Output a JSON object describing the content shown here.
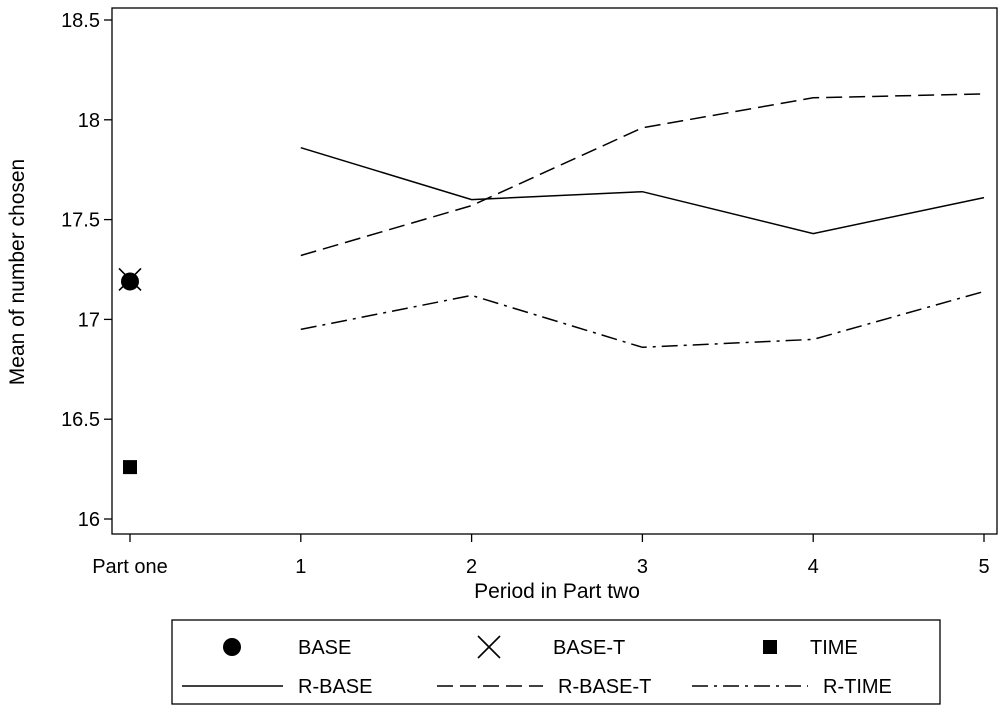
{
  "chart_data": {
    "type": "line",
    "xlabel": "Period in Part two",
    "ylabel": "Mean of number chosen",
    "ylim": [
      15.95,
      18.55
    ],
    "yticks": [
      16,
      16.5,
      17,
      17.5,
      18,
      18.5
    ],
    "ytick_labels": [
      "16",
      "16.5",
      "17",
      "17.5",
      "18",
      "18.5"
    ],
    "xticks": [
      0,
      1,
      2,
      3,
      4,
      5
    ],
    "xtick_labels": [
      "Part one",
      "1",
      "2",
      "3",
      "4",
      "5"
    ],
    "grid": false,
    "legend_position": "bottom",
    "part_one_points": [
      {
        "name": "BASE",
        "marker": "circle",
        "x": 0,
        "y": 17.19
      },
      {
        "name": "BASE-T",
        "marker": "x",
        "x": 0,
        "y": 17.2
      },
      {
        "name": "TIME",
        "marker": "square",
        "x": 0,
        "y": 16.26
      }
    ],
    "series": [
      {
        "name": "R-BASE",
        "dash": "solid",
        "x": [
          1,
          2,
          3,
          4,
          5
        ],
        "values": [
          17.86,
          17.6,
          17.64,
          17.43,
          17.61
        ]
      },
      {
        "name": "R-BASE-T",
        "dash": "dashed",
        "x": [
          1,
          2,
          3,
          4,
          5
        ],
        "values": [
          17.32,
          17.57,
          17.96,
          18.11,
          18.13
        ]
      },
      {
        "name": "R-TIME",
        "dash": "dashdot",
        "x": [
          1,
          2,
          3,
          4,
          5
        ],
        "values": [
          16.95,
          17.12,
          16.86,
          16.9,
          17.14
        ]
      }
    ]
  }
}
